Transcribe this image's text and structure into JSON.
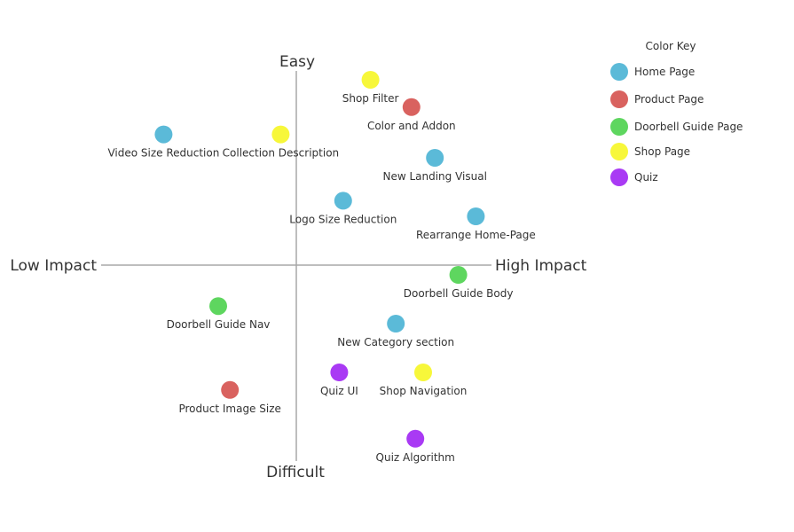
{
  "axes": {
    "top": "Easy",
    "bottom": "Difficult",
    "left": "Low Impact",
    "right": "High Impact"
  },
  "legend": {
    "title": "Color Key",
    "items": [
      {
        "label": "Home Page",
        "color": "#5bbad8"
      },
      {
        "label": "Product Page",
        "color": "#d9625f"
      },
      {
        "label": "Doorbell Guide Page",
        "color": "#5ed65f"
      },
      {
        "label": "Shop Page",
        "color": "#f7f73a"
      },
      {
        "label": "Quiz",
        "color": "#a93af4"
      }
    ]
  },
  "chart_data": {
    "type": "scatter",
    "xlabel": "",
    "ylabel": "",
    "xlim": [
      -100,
      100
    ],
    "ylim": [
      -100,
      100
    ],
    "grid": false,
    "points": [
      {
        "label": "Shop Filter",
        "category": "Shop Page",
        "x": 38,
        "y": 95
      },
      {
        "label": "Color and Addon",
        "category": "Product Page",
        "x": 59,
        "y": 81
      },
      {
        "label": "Video Size Reduction",
        "category": "Home Page",
        "x": -68,
        "y": 67
      },
      {
        "label": "Collection Description",
        "category": "Shop Page",
        "x": -8,
        "y": 67
      },
      {
        "label": "New Landing Visual",
        "category": "Home Page",
        "x": 71,
        "y": 55
      },
      {
        "label": "Logo Size Reduction",
        "category": "Home Page",
        "x": 24,
        "y": 33
      },
      {
        "label": "Rearrange Home-Page",
        "category": "Home Page",
        "x": 92,
        "y": 25
      },
      {
        "label": "Doorbell Guide Body",
        "category": "Doorbell Guide Page",
        "x": 83,
        "y": -5
      },
      {
        "label": "Doorbell Guide Nav",
        "category": "Doorbell Guide Page",
        "x": -40,
        "y": -21
      },
      {
        "label": "New Category section",
        "category": "Home Page",
        "x": 51,
        "y": -30
      },
      {
        "label": "Quiz UI",
        "category": "Quiz",
        "x": 22,
        "y": -55
      },
      {
        "label": "Shop Navigation",
        "category": "Shop Page",
        "x": 65,
        "y": -55
      },
      {
        "label": "Product Image Size",
        "category": "Product Page",
        "x": -34,
        "y": -64
      },
      {
        "label": "Quiz Algorithm",
        "category": "Quiz",
        "x": 61,
        "y": -89
      }
    ]
  }
}
